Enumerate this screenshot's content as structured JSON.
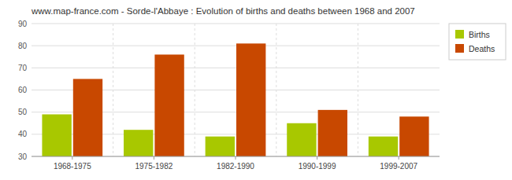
{
  "chart_data": {
    "type": "bar",
    "title": "www.map-france.com - Sorde-l'Abbaye : Evolution of births and deaths between 1968 and 2007",
    "categories": [
      "1968-1975",
      "1975-1982",
      "1982-1990",
      "1990-1999",
      "1999-2007"
    ],
    "series": [
      {
        "name": "Births",
        "color": "#a8c800",
        "values": [
          49,
          42,
          39,
          45,
          39
        ]
      },
      {
        "name": "Deaths",
        "color": "#c84800",
        "values": [
          65,
          76,
          81,
          51,
          48
        ]
      }
    ],
    "ylim": [
      30,
      90
    ],
    "yticks": [
      30,
      40,
      50,
      60,
      70,
      80,
      90
    ],
    "grid": true,
    "legend": "upper right"
  }
}
